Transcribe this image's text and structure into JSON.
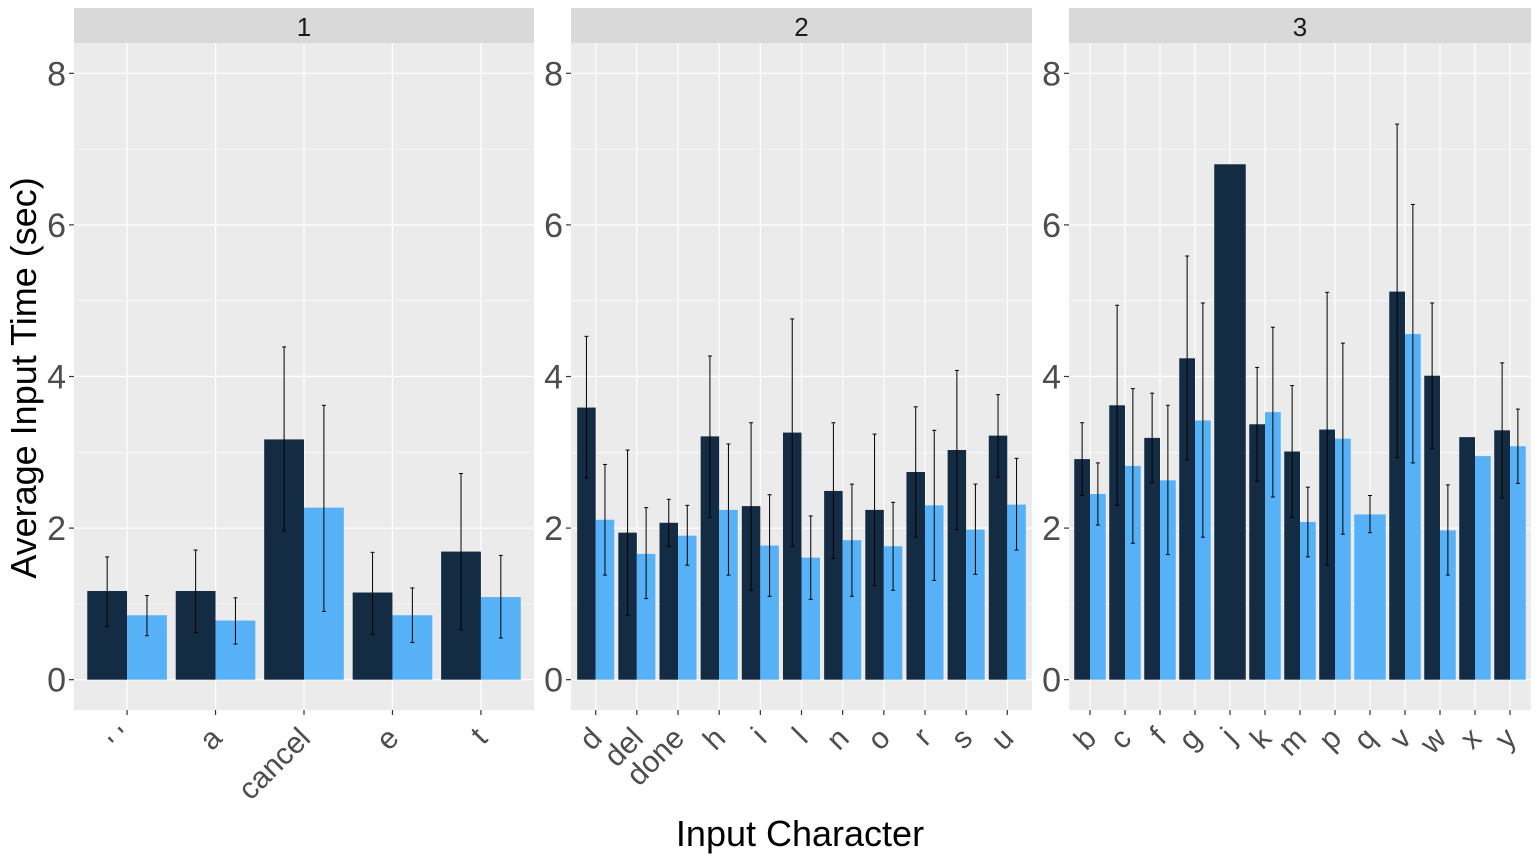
{
  "chart_data": {
    "type": "bar",
    "xlabel": "Input Character",
    "ylabel": "Average Input Time (sec)",
    "ylim": [
      -0.4,
      8.4
    ],
    "yticks": [
      0,
      2,
      4,
      6,
      8
    ],
    "grid": true,
    "legend": "none",
    "colors": {
      "series1": "#132b43",
      "series2": "#56b1f7",
      "panel_bg": "#ebebeb",
      "strip_bg": "#d9d9d9",
      "grid": "#ffffff"
    },
    "facets": [
      {
        "strip_label": "1",
        "categories": [
          "' '",
          "a",
          "cancel",
          "e",
          "t"
        ],
        "series": [
          {
            "values": [
              1.17,
              1.17,
              3.17,
              1.15,
              1.69
            ],
            "errors": [
              [
                0.7,
                1.62
              ],
              [
                0.62,
                1.71
              ],
              [
                1.96,
                4.39
              ],
              [
                0.6,
                1.68
              ],
              [
                0.66,
                2.72
              ]
            ]
          },
          {
            "values": [
              0.85,
              0.78,
              2.27,
              0.85,
              1.09
            ],
            "errors": [
              [
                0.58,
                1.11
              ],
              [
                0.47,
                1.08
              ],
              [
                0.9,
                3.62
              ],
              [
                0.49,
                1.21
              ],
              [
                0.55,
                1.64
              ]
            ]
          }
        ]
      },
      {
        "strip_label": "2",
        "categories": [
          "d",
          "del",
          "done",
          "h",
          "i",
          "l",
          "n",
          "o",
          "r",
          "s",
          "u"
        ],
        "series": [
          {
            "values": [
              3.59,
              1.94,
              2.07,
              3.21,
              2.29,
              3.26,
              2.49,
              2.24,
              2.74,
              3.03,
              3.22
            ],
            "errors": [
              [
                2.66,
                4.53
              ],
              [
                0.85,
                3.03
              ],
              [
                1.76,
                2.38
              ],
              [
                2.14,
                4.27
              ],
              [
                1.18,
                3.39
              ],
              [
                1.76,
                4.76
              ],
              [
                1.6,
                3.39
              ],
              [
                1.24,
                3.24
              ],
              [
                1.88,
                3.6
              ],
              [
                1.98,
                4.08
              ],
              [
                2.67,
                3.76
              ]
            ]
          },
          {
            "values": [
              2.11,
              1.66,
              1.9,
              2.24,
              1.77,
              1.61,
              1.84,
              1.76,
              2.3,
              1.98,
              2.31
            ],
            "errors": [
              [
                1.38,
                2.84
              ],
              [
                1.07,
                2.27
              ],
              [
                1.51,
                2.3
              ],
              [
                1.38,
                3.11
              ],
              [
                1.1,
                2.44
              ],
              [
                1.06,
                2.16
              ],
              [
                1.1,
                2.58
              ],
              [
                1.18,
                2.34
              ],
              [
                1.31,
                3.29
              ],
              [
                1.39,
                2.58
              ],
              [
                1.71,
                2.92
              ]
            ]
          }
        ]
      },
      {
        "strip_label": "3",
        "categories": [
          "b",
          "c",
          "f",
          "g",
          "j",
          "k",
          "m",
          "p",
          "q",
          "v",
          "w",
          "x",
          "y"
        ],
        "series": [
          {
            "values": [
              2.91,
              3.62,
              3.19,
              4.24,
              6.8,
              3.37,
              3.01,
              3.3,
              null,
              5.12,
              4.01,
              3.2,
              3.29
            ],
            "errors": [
              [
                2.43,
                3.39
              ],
              [
                2.3,
                4.94
              ],
              [
                2.6,
                3.78
              ],
              [
                2.9,
                5.59
              ],
              null,
              [
                2.62,
                4.12
              ],
              [
                2.14,
                3.88
              ],
              [
                1.51,
                5.11
              ],
              null,
              [
                2.93,
                7.33
              ],
              [
                3.05,
                4.97
              ],
              null,
              [
                2.4,
                4.18
              ]
            ]
          },
          {
            "values": [
              2.45,
              2.82,
              2.63,
              3.42,
              null,
              3.53,
              2.08,
              3.18,
              2.18,
              4.56,
              1.97,
              2.95,
              3.08
            ],
            "errors": [
              [
                2.04,
                2.86
              ],
              [
                1.8,
                3.84
              ],
              [
                1.65,
                3.62
              ],
              [
                1.88,
                4.97
              ],
              null,
              [
                2.41,
                4.65
              ],
              [
                1.62,
                2.54
              ],
              [
                1.92,
                4.44
              ],
              [
                1.94,
                2.43
              ],
              [
                2.86,
                6.27
              ],
              [
                1.38,
                2.57
              ],
              null,
              [
                2.59,
                3.57
              ]
            ]
          }
        ]
      }
    ]
  }
}
